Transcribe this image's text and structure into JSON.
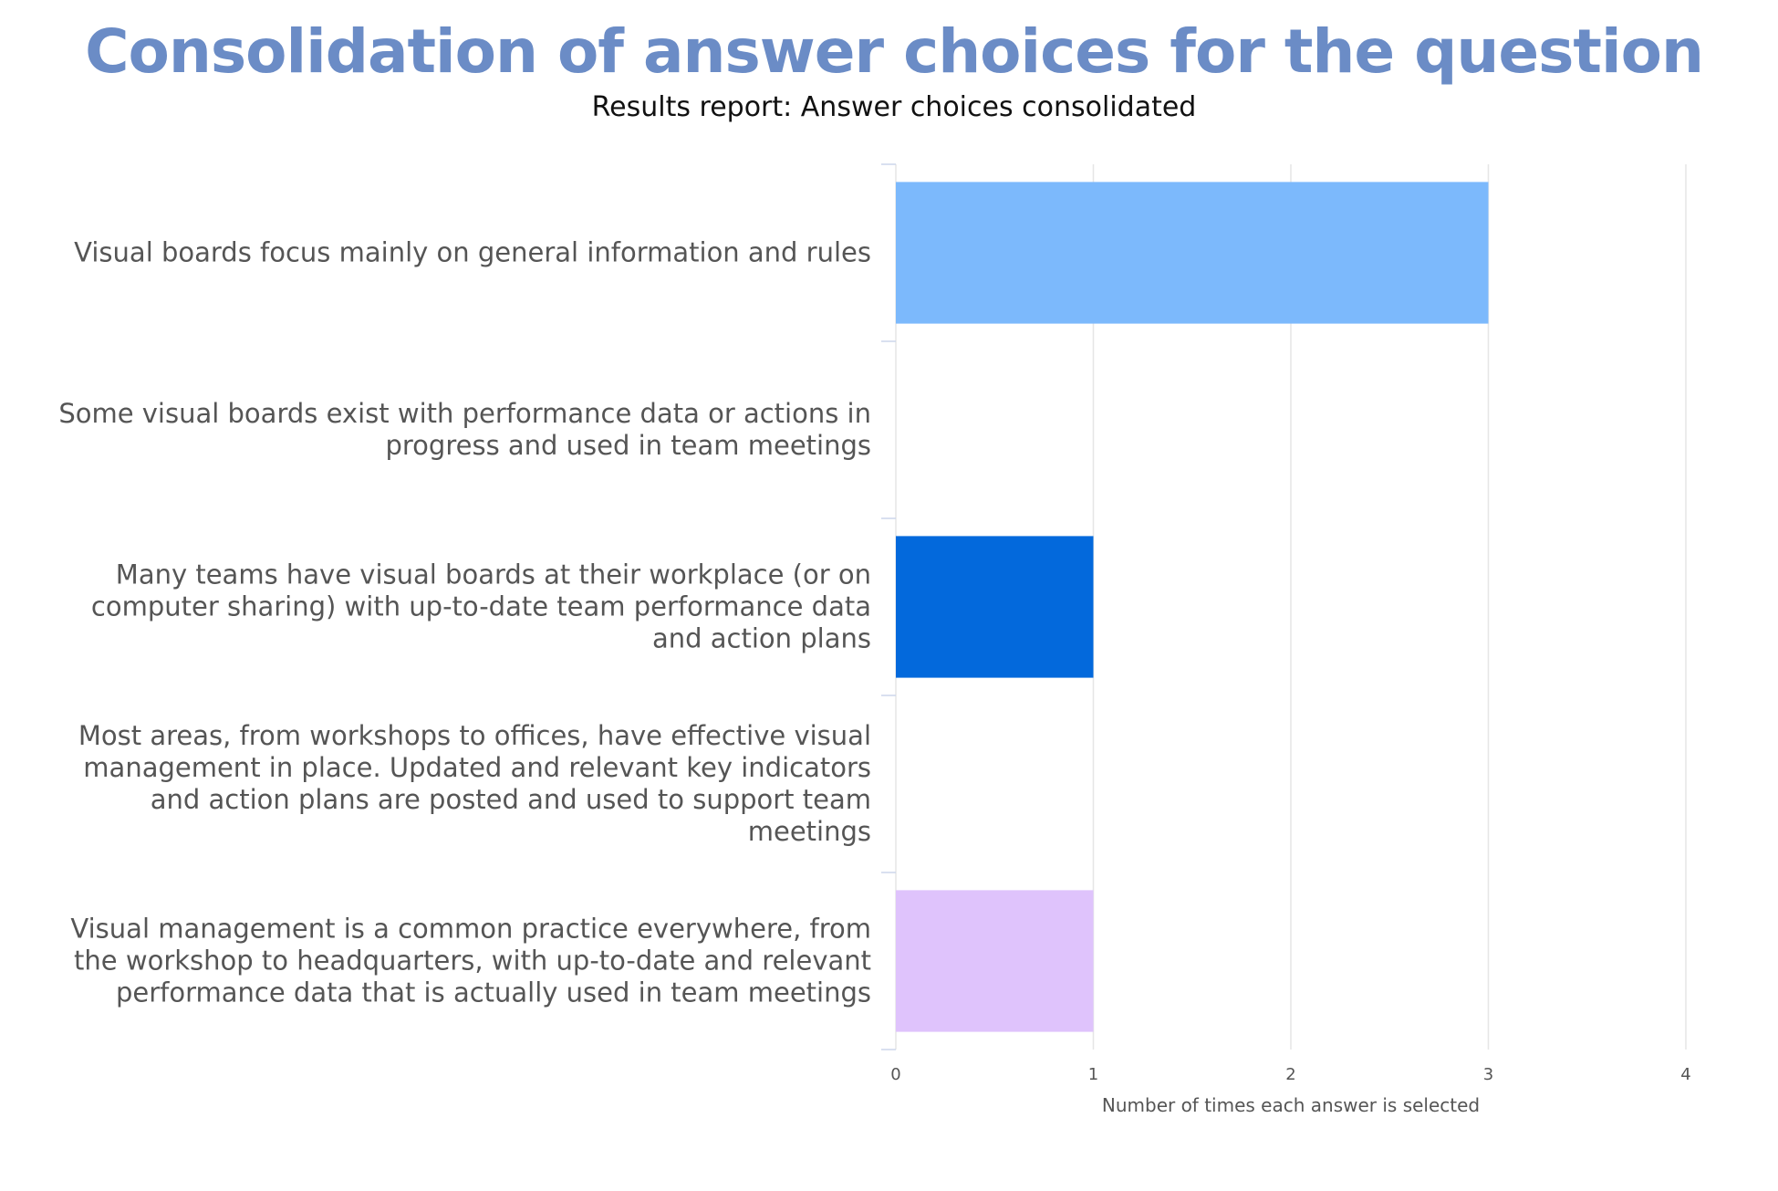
{
  "chart_data": {
    "type": "bar",
    "orientation": "horizontal",
    "title": "Consolidation of answer choices for the question",
    "subtitle": "Results report: Answer choices consolidated",
    "xlabel": "Number of times each answer is selected",
    "ylabel": "",
    "xlim": [
      0,
      4
    ],
    "xticks": [
      "0",
      "1",
      "2",
      "3",
      "4"
    ],
    "grid": true,
    "legend": "none",
    "categories": [
      "Visual boards focus mainly on general information and rules",
      "Some visual boards exist with performance data or actions in progress and used in team meetings",
      "Many teams have visual boards at their workplace (or on computer sharing) with up-to-date team performance data and action plans",
      "Most areas, from workshops to offices, have effective visual management in place. Updated and relevant key indicators and action plans are posted and used to support team meetings",
      "Visual management is a common practice everywhere, from the workshop to headquarters, with up-to-date and relevant performance data that is actually used in team meetings"
    ],
    "values": [
      3,
      0,
      1,
      0,
      1
    ],
    "colors": [
      "#7cb9fc",
      "#1a6fd9",
      "#0369dc",
      "#8a5cf0",
      "#dfc3fc"
    ]
  },
  "colors": {
    "title": "#6b8cc6",
    "grid": "#e6e6e6",
    "axis": "#ccd6eb"
  }
}
